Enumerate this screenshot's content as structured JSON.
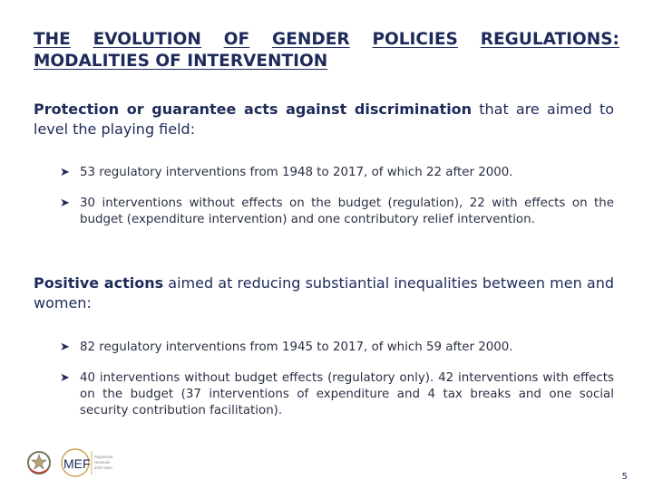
{
  "title": {
    "line1_words": [
      "THE",
      "EVOLUTION",
      "OF",
      "GENDER",
      "POLICIES",
      "REGULATIONS:"
    ],
    "line2": "MODALITIES OF INTERVENTION"
  },
  "section1": {
    "heading_bold": "Protection or guarantee acts against discrimination",
    "heading_rest": " that are aimed to level the playing field:",
    "bullets": [
      "53 regulatory interventions from 1948 to 2017, of which 22 after 2000.",
      "30 interventions without effects on the budget (regulation), 22 with effects on the budget (expenditure intervention) and one contributory relief intervention."
    ]
  },
  "section2": {
    "heading_bold": "Positive actions",
    "heading_rest": " aimed at reducing substiantial inequalities between men and women:",
    "bullets": [
      "82 regulatory interventions from 1945 to 2017, of which 59 after 2000.",
      "40 interventions without budget effects (regulatory only). 42 interventions with effects on the budget (37 interventions of expenditure and 4 tax breaks and one social security contribution facilitation)."
    ]
  },
  "footer": {
    "page_number": "5",
    "logo_text": "MEF",
    "logo_subtext": "Ragioneria Generale dello Stato",
    "brand_color": "#1e2a5a",
    "accent_color": "#c9a24a"
  }
}
